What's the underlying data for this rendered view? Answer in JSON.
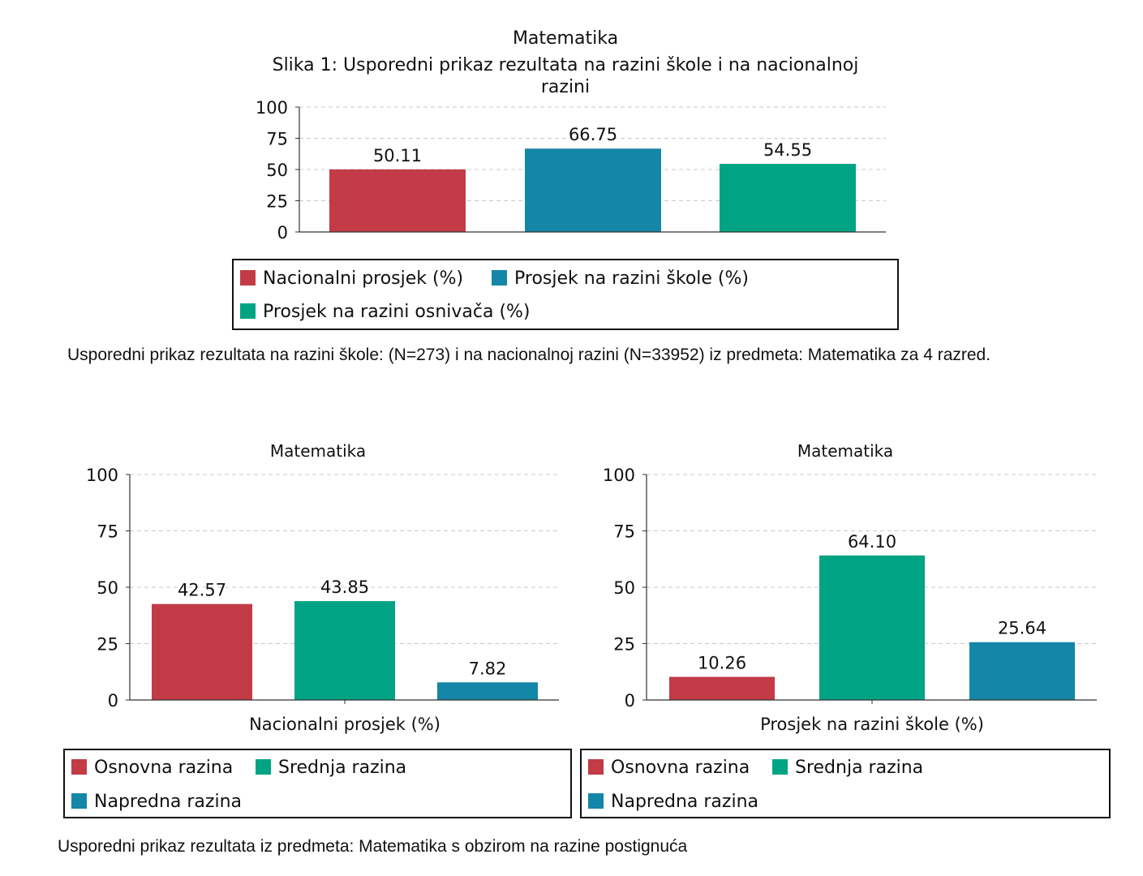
{
  "colors": {
    "red": "#c23b47",
    "blue": "#1486a8",
    "green": "#00a484",
    "grid": "#c8c8c8",
    "axis": "#333333"
  },
  "captions": {
    "main": "Usporedni prikaz rezultata na razini škole: (N=273) i na nacionalnoj razini (N=33952) iz predmeta: Matematika za 4 razred.",
    "levels": "Usporedni prikaz rezultata iz predmeta: Matematika s obzirom na razine postignuća"
  },
  "chart_data": [
    {
      "type": "bar",
      "title": "Matematika",
      "subtitle_lines": [
        "Slika 1: Usporedni prikaz rezultata na razini škole i na nacionalnoj",
        "razini"
      ],
      "xlabel": "",
      "ylabel": "",
      "ylim": [
        0,
        100
      ],
      "yticks": [
        0,
        25,
        50,
        75,
        100
      ],
      "grid": true,
      "legend_placement": "bottom",
      "series": [
        {
          "name": "Nacionalni prosjek (%)",
          "value": 50.11,
          "label": "50.11",
          "color": "#c23b47"
        },
        {
          "name": "Prosjek na razini škole (%)",
          "value": 66.75,
          "label": "66.75",
          "color": "#1486a8"
        },
        {
          "name": "Prosjek na razini osnivača (%)",
          "value": 54.55,
          "label": "54.55",
          "color": "#00a484"
        }
      ]
    },
    {
      "type": "bar",
      "title": "Matematika",
      "xlabel": "Nacionalni prosjek (%)",
      "ylabel": "",
      "ylim": [
        0,
        100
      ],
      "yticks": [
        0,
        25,
        50,
        75,
        100
      ],
      "grid": true,
      "legend_placement": "bottom",
      "series": [
        {
          "name": "Osnovna razina",
          "value": 42.57,
          "label": "42.57",
          "color": "#c23b47"
        },
        {
          "name": "Srednja razina",
          "value": 43.85,
          "label": "43.85",
          "color": "#00a484"
        },
        {
          "name": "Napredna razina",
          "value": 7.82,
          "label": "7.82",
          "color": "#1486a8"
        }
      ]
    },
    {
      "type": "bar",
      "title": "Matematika",
      "xlabel": "Prosjek na razini škole (%)",
      "ylabel": "",
      "ylim": [
        0,
        100
      ],
      "yticks": [
        0,
        25,
        50,
        75,
        100
      ],
      "grid": true,
      "legend_placement": "bottom",
      "series": [
        {
          "name": "Osnovna razina",
          "value": 10.26,
          "label": "10.26",
          "color": "#c23b47"
        },
        {
          "name": "Srednja razina",
          "value": 64.1,
          "label": "64.10",
          "color": "#00a484"
        },
        {
          "name": "Napredna razina",
          "value": 25.64,
          "label": "25.64",
          "color": "#1486a8"
        }
      ]
    }
  ]
}
